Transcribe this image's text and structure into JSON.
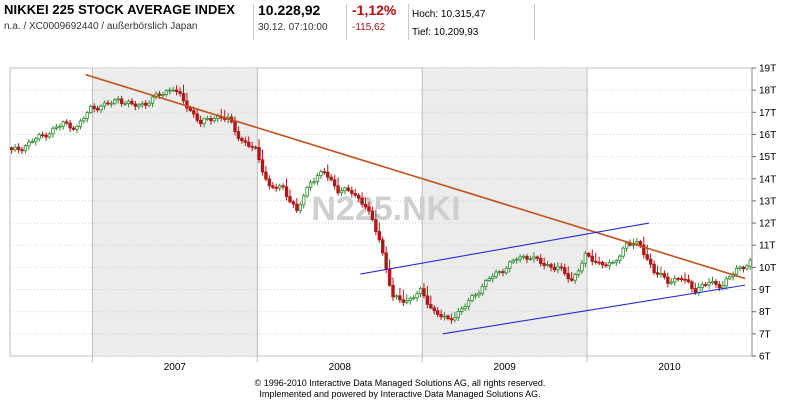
{
  "header": {
    "title": "NIKKEI 225 STOCK AVERAGE INDEX",
    "subtitle": "n.a. / XC0009692440 / außerbörslich Japan",
    "price": "10.228,92",
    "datetime": "30.12. 07:10:00",
    "change_pct": "-1,12%",
    "change_abs": "-115,62",
    "high_label": "Hoch:",
    "high_value": "10.315,47",
    "low_label": "Tief:",
    "low_value": "10.209,93"
  },
  "watermark": "N225.NKI",
  "footer": {
    "line1": "© 1996-2010 Interactive Data Managed Solutions AG, all rights reserved.",
    "line2": "Implemented and powered by Interactive Data Managed Solutions AG."
  },
  "colors": {
    "up_candle": "#2e8b2e",
    "down_candle": "#b01818",
    "trendline": "#c0501e",
    "channel": "#2a2ad0",
    "shade": "#ececec",
    "grid": "#cccccc"
  },
  "chart_data": {
    "type": "candlestick",
    "x_tick_labels": [
      "2007",
      "2008",
      "2009",
      "2010"
    ],
    "y_tick_labels": [
      "6T",
      "7T",
      "8T",
      "9T",
      "10T",
      "11T",
      "12T",
      "13T",
      "14T",
      "15T",
      "16T",
      "17T",
      "18T",
      "19T"
    ],
    "ylim": [
      6000,
      19000
    ],
    "xlim": [
      "2006-07-01",
      "2010-12-31"
    ],
    "y_axis_position": "right",
    "grid": true,
    "shaded_years": [
      "2007",
      "2009"
    ],
    "series": [
      {
        "type": "candlestick",
        "x": [
          "2006-07",
          "2006-08",
          "2006-09",
          "2006-10",
          "2006-11",
          "2006-12",
          "2007-01",
          "2007-02",
          "2007-03",
          "2007-04",
          "2007-05",
          "2007-06",
          "2007-07",
          "2007-08",
          "2007-09",
          "2007-10",
          "2007-11",
          "2007-12",
          "2008-01",
          "2008-02",
          "2008-03",
          "2008-04",
          "2008-05",
          "2008-06",
          "2008-07",
          "2008-08",
          "2008-09",
          "2008-10",
          "2008-11",
          "2008-12",
          "2009-01",
          "2009-02",
          "2009-03",
          "2009-04",
          "2009-05",
          "2009-06",
          "2009-07",
          "2009-08",
          "2009-09",
          "2009-10",
          "2009-11",
          "2009-12",
          "2010-01",
          "2010-02",
          "2010-03",
          "2010-04",
          "2010-05",
          "2010-06",
          "2010-07",
          "2010-08",
          "2010-09",
          "2010-10",
          "2010-11",
          "2010-12"
        ],
        "close": [
          15400,
          15800,
          16100,
          16500,
          16300,
          17200,
          17300,
          17600,
          17300,
          17400,
          17800,
          18100,
          17300,
          16500,
          16800,
          16700,
          15700,
          15300,
          13600,
          13600,
          12500,
          13900,
          14300,
          13500,
          13400,
          12800,
          11300,
          8600,
          8500,
          8900,
          8000,
          7600,
          8100,
          8800,
          9500,
          9900,
          10400,
          10500,
          10100,
          10000,
          9400,
          10500,
          10200,
          10100,
          11100,
          11000,
          9800,
          9400,
          9500,
          9000,
          9300,
          9200,
          9900,
          10229
        ],
        "high": [
          15700,
          16000,
          16300,
          16700,
          16500,
          17300,
          17500,
          17800,
          17500,
          17600,
          18000,
          18300,
          18200,
          17000,
          17000,
          17500,
          16200,
          15800,
          15200,
          13900,
          13300,
          14100,
          14600,
          14300,
          13700,
          13400,
          12500,
          11400,
          9500,
          9100,
          9300,
          8000,
          8600,
          9000,
          9700,
          10100,
          10500,
          10700,
          10600,
          10400,
          10100,
          10700,
          11000,
          10300,
          11200,
          11400,
          11100,
          10100,
          9800,
          9600,
          9700,
          9600,
          10100,
          10315
        ]
      }
    ],
    "trendlines": [
      {
        "name": "",
        "from": [
          "2006-12",
          18700
        ],
        "to": [
          "2010-12",
          9500
        ]
      },
      {
        "name": "",
        "from": [
          "2008-08",
          9700
        ],
        "to": [
          "2010-05",
          12000
        ]
      },
      {
        "name": "",
        "from": [
          "2009-02",
          7000
        ],
        "to": [
          "2010-12",
          9200
        ]
      }
    ]
  }
}
